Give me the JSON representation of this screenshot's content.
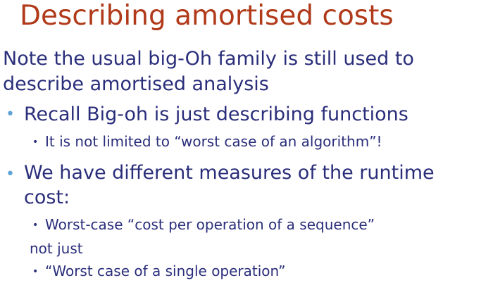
{
  "slide": {
    "title": "Describing amortised costs",
    "intro_line_1": "Note the usual big-Oh family is still used to",
    "intro_line_2": "describe amortised analysis",
    "bullet_1": "Recall Big-oh is just describing functions",
    "bullet_1_sub_1": "It is not limited to “worst case of an algorithm”!",
    "bullet_2_line_1": "We have different measures of the runtime",
    "bullet_2_line_2": "cost:",
    "bullet_2_sub_1_line_1": "Worst-case “cost per operation of a sequence”",
    "bullet_2_sub_1_line_2": "not just",
    "bullet_2_sub_2": "“Worst case of a single operation”",
    "bullet_glyph": "•"
  },
  "colors": {
    "title": "#b03a1a",
    "body_text": "#2a2e7a",
    "level1_bullet": "#5fa3d6",
    "background": "#ffffff"
  }
}
